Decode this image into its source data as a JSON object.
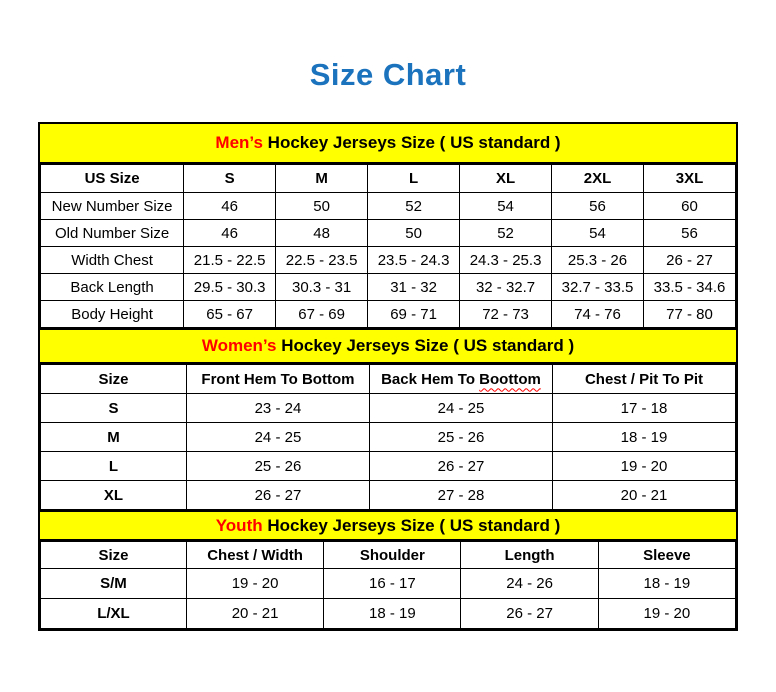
{
  "page": {
    "title": "Size Chart"
  },
  "colors": {
    "title_blue": "#1b73be",
    "band_yellow": "#ffff00",
    "accent_red": "#ff0000",
    "border_black": "#000000"
  },
  "tables": [
    {
      "id": "mens",
      "band": {
        "highlight": "Men’s",
        "rest": " Hockey Jerseys Size ( US standard )"
      },
      "columns": [
        "US Size",
        "S",
        "M",
        "L",
        "XL",
        "2XL",
        "3XL"
      ],
      "rows": [
        {
          "label": "New Number Size",
          "values": [
            "46",
            "50",
            "52",
            "54",
            "56",
            "60"
          ]
        },
        {
          "label": "Old Number Size",
          "values": [
            "46",
            "48",
            "50",
            "52",
            "54",
            "56"
          ]
        },
        {
          "label": "Width Chest",
          "values": [
            "21.5 - 22.5",
            "22.5 - 23.5",
            "23.5 - 24.3",
            "24.3 - 25.3",
            "25.3 - 26",
            "26 - 27"
          ]
        },
        {
          "label": "Back Length",
          "values": [
            "29.5 - 30.3",
            "30.3 - 31",
            "31 - 32",
            "32 - 32.7",
            "32.7 - 33.5",
            "33.5 - 34.6"
          ]
        },
        {
          "label": "Body Height",
          "values": [
            "65 - 67",
            "67 - 69",
            "69 - 71",
            "72 - 73",
            "74 - 76",
            "77 - 80"
          ]
        }
      ]
    },
    {
      "id": "womens",
      "band": {
        "highlight": "Women’s",
        "rest": " Hockey Jerseys Size ( US standard )"
      },
      "columns": [
        "Size",
        "Front Hem To Bottom",
        "Back Hem To Boottom",
        "Chest / Pit To Pit"
      ],
      "squiggle_word": "Boottom",
      "rows": [
        {
          "label": "S",
          "values": [
            "23 - 24",
            "24 - 25",
            "17 - 18"
          ]
        },
        {
          "label": "M",
          "values": [
            "24 - 25",
            "25 - 26",
            "18 - 19"
          ]
        },
        {
          "label": "L",
          "values": [
            "25 - 26",
            "26 - 27",
            "19 - 20"
          ]
        },
        {
          "label": "XL",
          "values": [
            "26 - 27",
            "27 - 28",
            "20 - 21"
          ]
        }
      ]
    },
    {
      "id": "youth",
      "band": {
        "highlight": "Youth",
        "rest": " Hockey Jerseys Size ( US standard )"
      },
      "columns": [
        "Size",
        "Chest / Width",
        "Shoulder",
        "Length",
        "Sleeve"
      ],
      "rows": [
        {
          "label": "S/M",
          "values": [
            "19 - 20",
            "16 - 17",
            "24 - 26",
            "18 - 19"
          ]
        },
        {
          "label": "L/XL",
          "values": [
            "20 - 21",
            "18 - 19",
            "26 - 27",
            "19 - 20"
          ]
        }
      ]
    }
  ]
}
